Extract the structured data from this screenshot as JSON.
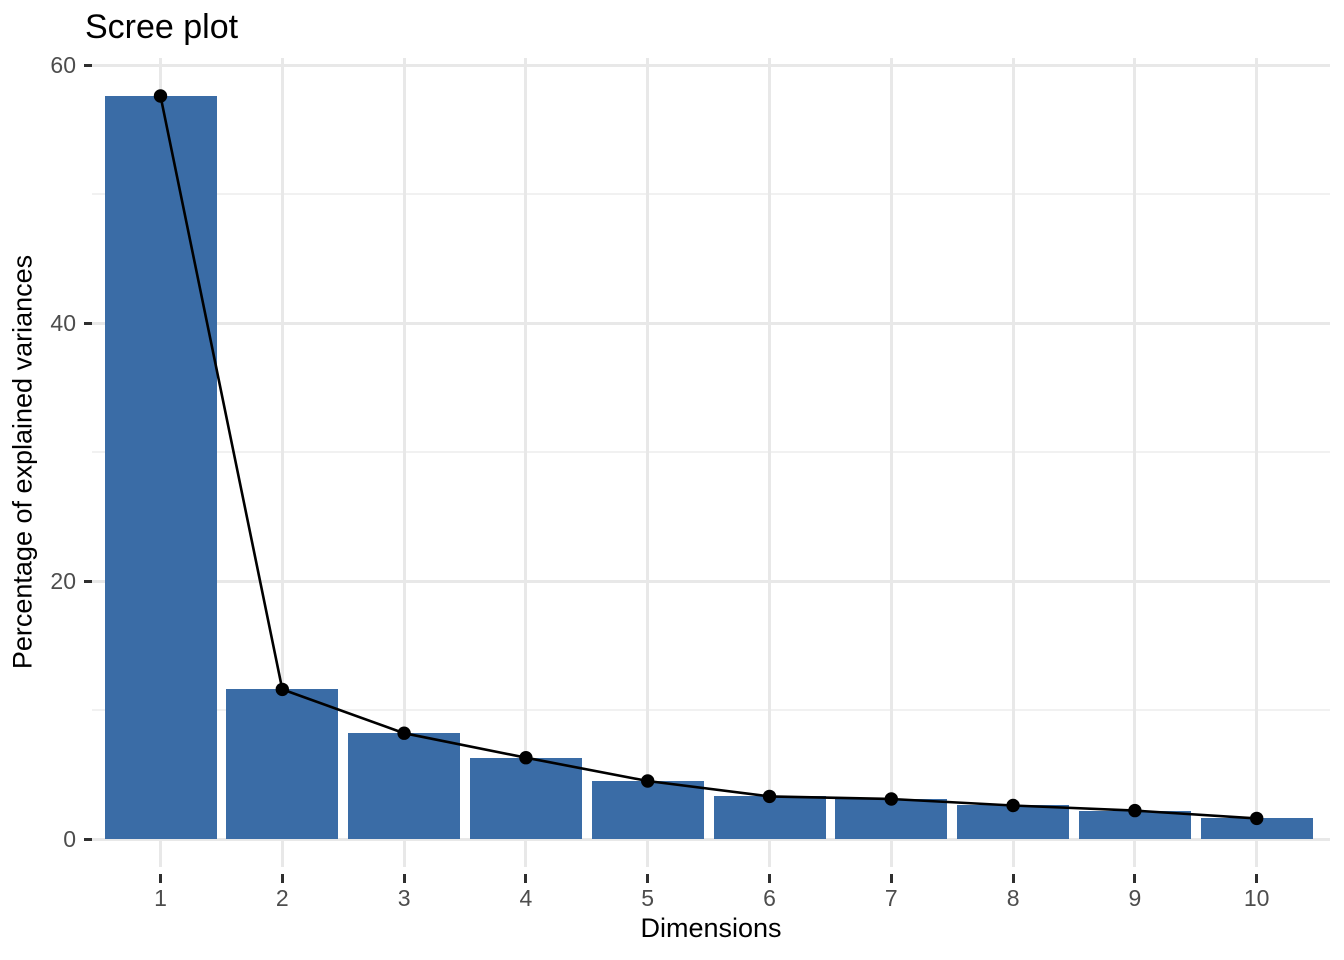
{
  "chart_data": {
    "type": "bar",
    "subtype": "scree-plot-with-line-overlay",
    "title": "Scree plot",
    "xlabel": "Dimensions",
    "ylabel": "Percentage of explained variances",
    "categories": [
      "1",
      "2",
      "3",
      "4",
      "5",
      "6",
      "7",
      "8",
      "9",
      "10"
    ],
    "values": [
      57.6,
      11.6,
      8.2,
      6.3,
      4.5,
      3.3,
      3.1,
      2.6,
      2.2,
      1.6
    ],
    "series": [
      {
        "name": "eigenvalue-percentage-bars",
        "type": "bar",
        "values": [
          57.6,
          11.6,
          8.2,
          6.3,
          4.5,
          3.3,
          3.1,
          2.6,
          2.2,
          1.6
        ]
      },
      {
        "name": "eigenvalue-percentage-line",
        "type": "line-with-points",
        "values": [
          57.6,
          11.6,
          8.2,
          6.3,
          4.5,
          3.3,
          3.1,
          2.6,
          2.2,
          1.6
        ]
      }
    ],
    "y_major_ticks": [
      0,
      20,
      40,
      60
    ],
    "y_minor_gridlines": [
      10,
      30,
      50
    ],
    "ylim": [
      -2.2,
      60.7
    ],
    "grid": "horizontal major+minor, vertical major at each category",
    "legend": "none",
    "colors": {
      "bar_fill": "#3A6CA6",
      "line": "#000000",
      "point": "#000000",
      "major_grid": "#E8E8E8",
      "minor_grid": "#F1F1F1",
      "tick_mark": "#2F2F2F",
      "tick_label": "#4D4D4D",
      "title_text": "#000000",
      "background": "#FFFFFF"
    }
  }
}
